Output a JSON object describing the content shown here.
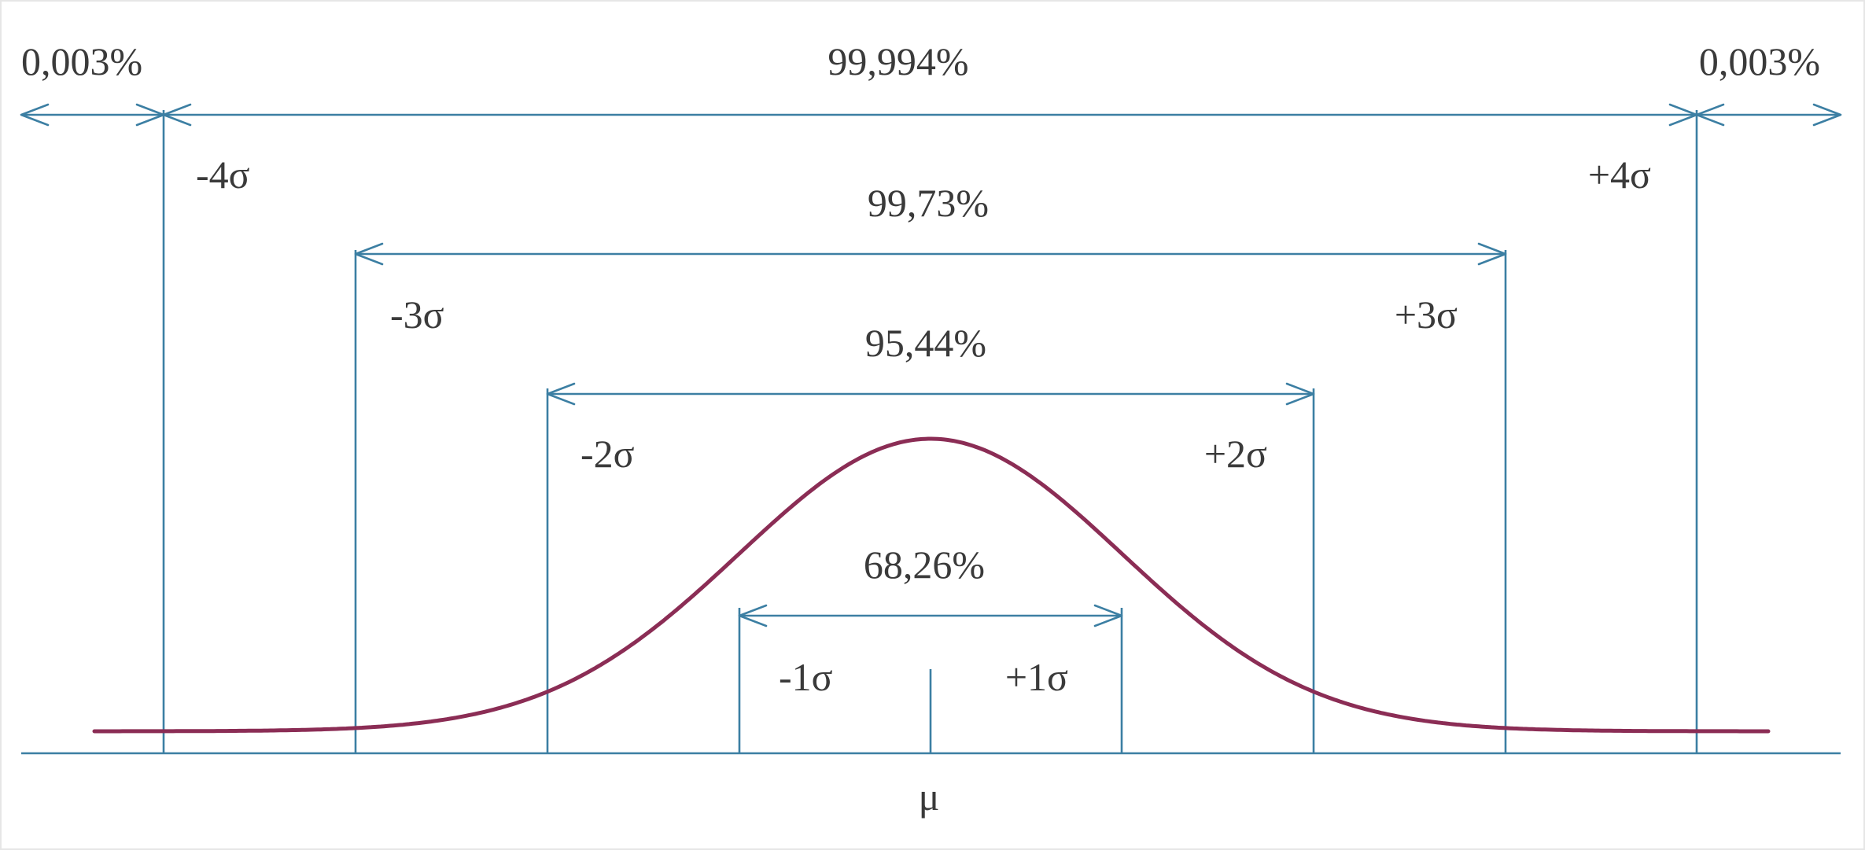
{
  "colors": {
    "line": "#3c7fa3",
    "curve": "#8b2d55",
    "text": "#3a3a3a",
    "background": "#ffffff",
    "frame": "#e6e6e6"
  },
  "labels": {
    "mu": "μ",
    "sigma": {
      "minus1": "-1σ",
      "plus1": "+1σ",
      "minus2": "-2σ",
      "plus2": "+2σ",
      "minus3": "-3σ",
      "plus3": "+3σ",
      "minus4": "-4σ",
      "plus4": "+4σ"
    },
    "percent": {
      "p68": "68,26%",
      "p95": "95,44%",
      "p99_73": "99,73%",
      "p99_994": "99,994%",
      "tail_left": "0,003%",
      "tail_right": "0,003%"
    }
  }
}
